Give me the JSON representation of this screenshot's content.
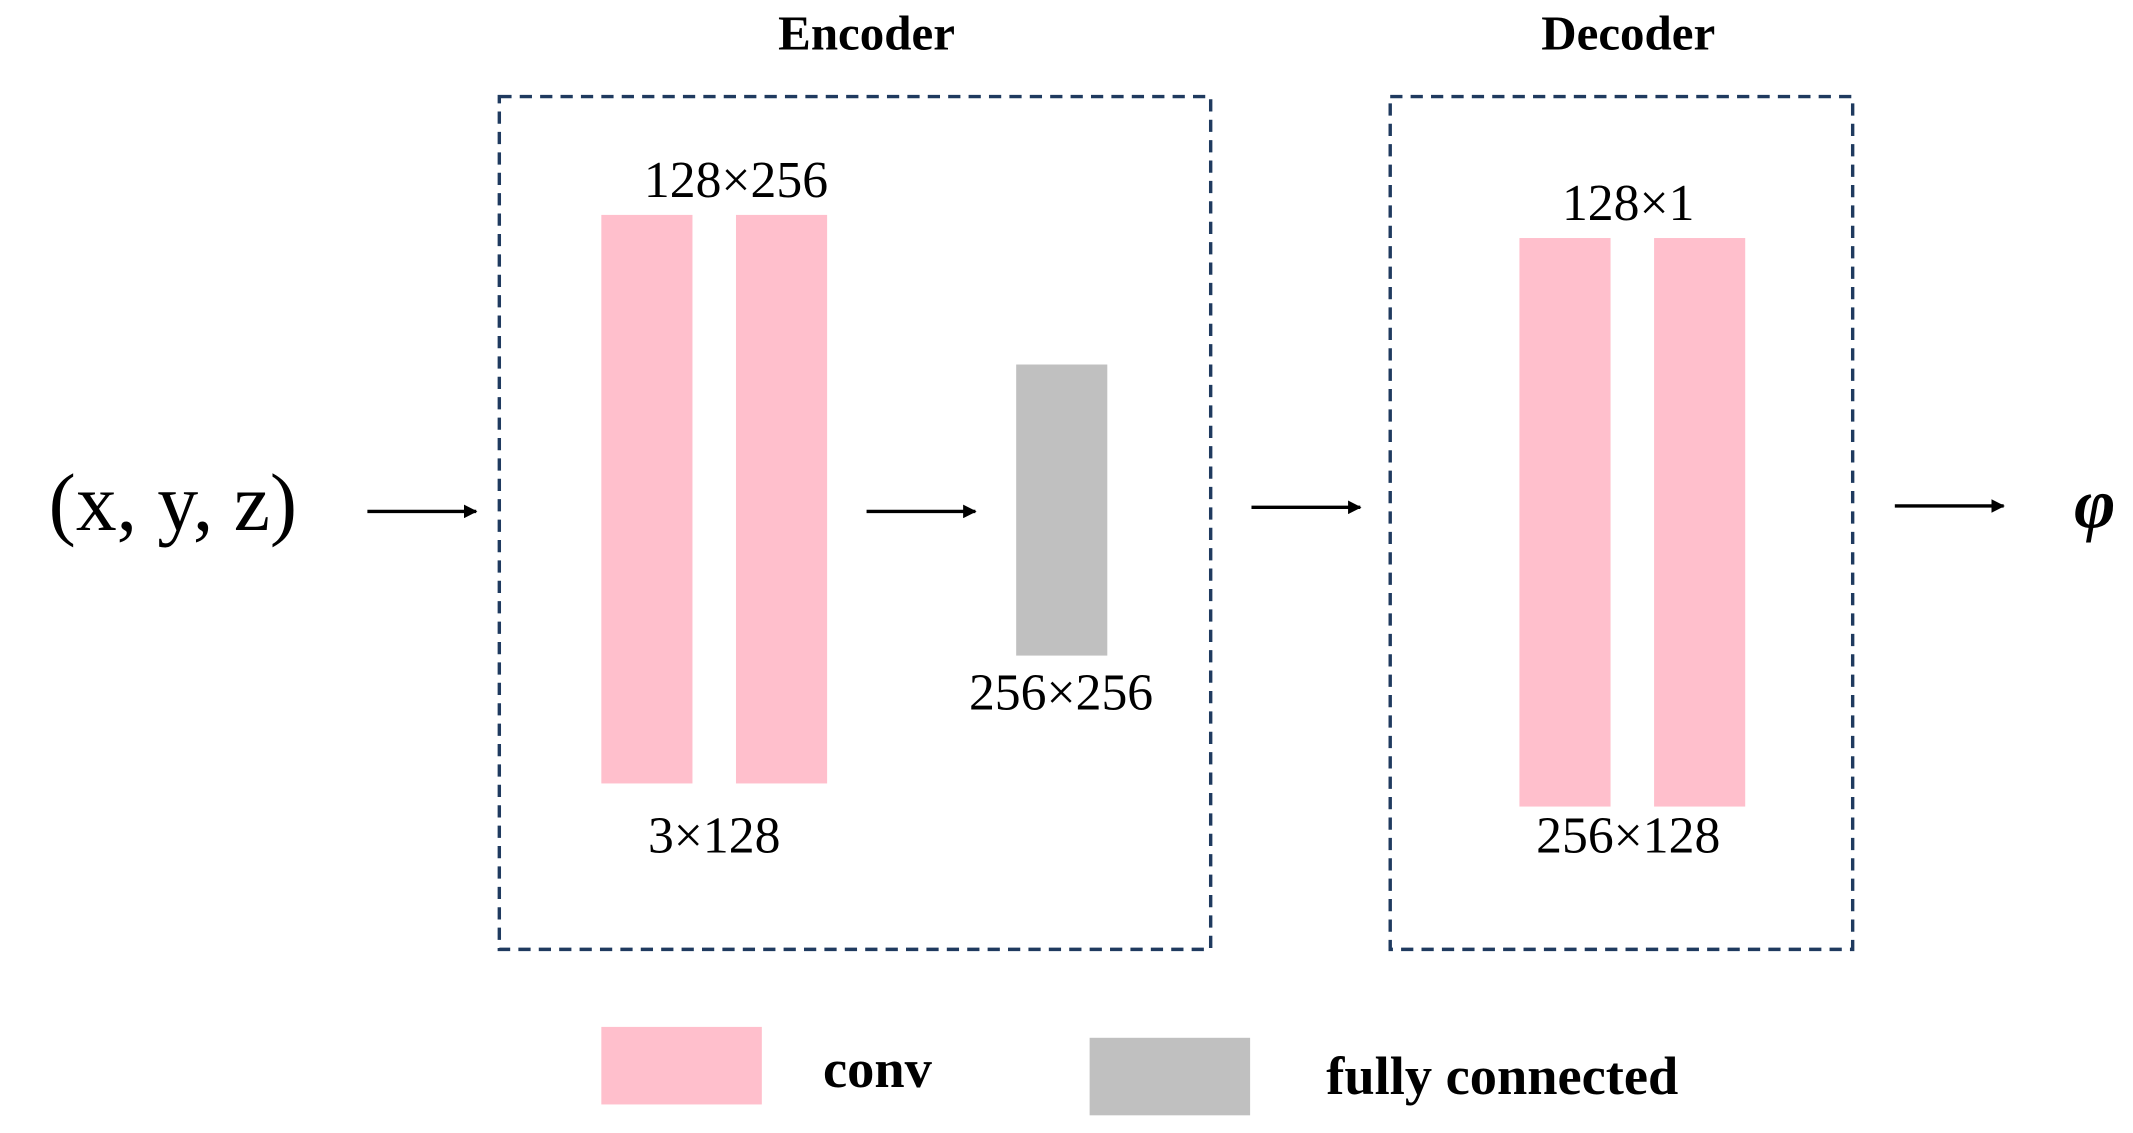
{
  "encoder": {
    "title": "Encoder",
    "layers": [
      {
        "top_label": "128×256"
      },
      {
        "bottom_label": "3×128"
      },
      {
        "bottom_label": "256×256"
      }
    ]
  },
  "decoder": {
    "title": "Decoder",
    "top_label": "128×1",
    "bottom_label": "256×128"
  },
  "input": "(x, y, z)",
  "output": "φ",
  "legend": [
    "conv",
    "fully connected"
  ]
}
